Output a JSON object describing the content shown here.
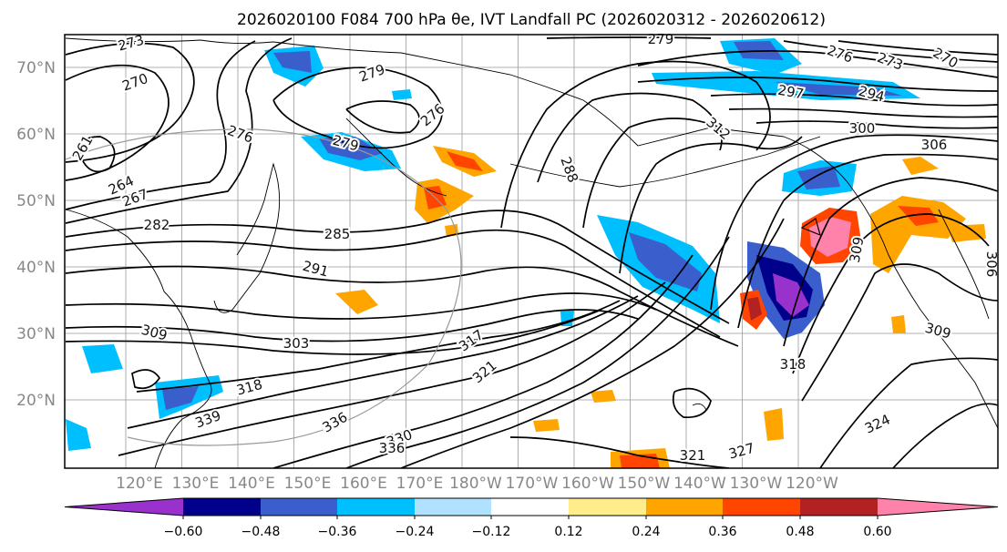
{
  "figure": {
    "title": "2026020100 F084 700 hPa θe, IVT Landfall PC (2026020312 - 2026020612)"
  },
  "map": {
    "lat_labels": [
      "70°N",
      "60°N",
      "50°N",
      "40°N",
      "30°N",
      "20°N"
    ],
    "lon_labels": [
      "120°E",
      "130°E",
      "140°E",
      "150°E",
      "160°E",
      "170°E",
      "180°W",
      "170°W",
      "160°W",
      "150°W",
      "140°W",
      "130°W",
      "120°W"
    ],
    "contour_labels": [
      "273",
      "270",
      "261",
      "264",
      "267",
      "276",
      "279",
      "279",
      "276",
      "282",
      "285",
      "291",
      "309",
      "303",
      "318",
      "339",
      "336",
      "330",
      "336",
      "321",
      "317",
      "279",
      "276",
      "273",
      "270",
      "288",
      "297",
      "294",
      "300",
      "306",
      "309",
      "318",
      "324",
      "327",
      "321",
      "309",
      "306",
      "312"
    ]
  },
  "colorbar": {
    "ticks": [
      "−0.60",
      "−0.48",
      "−0.36",
      "−0.24",
      "−0.12",
      "0.12",
      "0.24",
      "0.36",
      "0.48",
      "0.60"
    ],
    "colors": [
      "#9932cc",
      "#00008b",
      "#3a5fcd",
      "#00bfff",
      "#b0e2ff",
      "#ffffff",
      "#ffec8b",
      "#ffa500",
      "#ff4500",
      "#b22222",
      "#ff82ab"
    ]
  }
}
